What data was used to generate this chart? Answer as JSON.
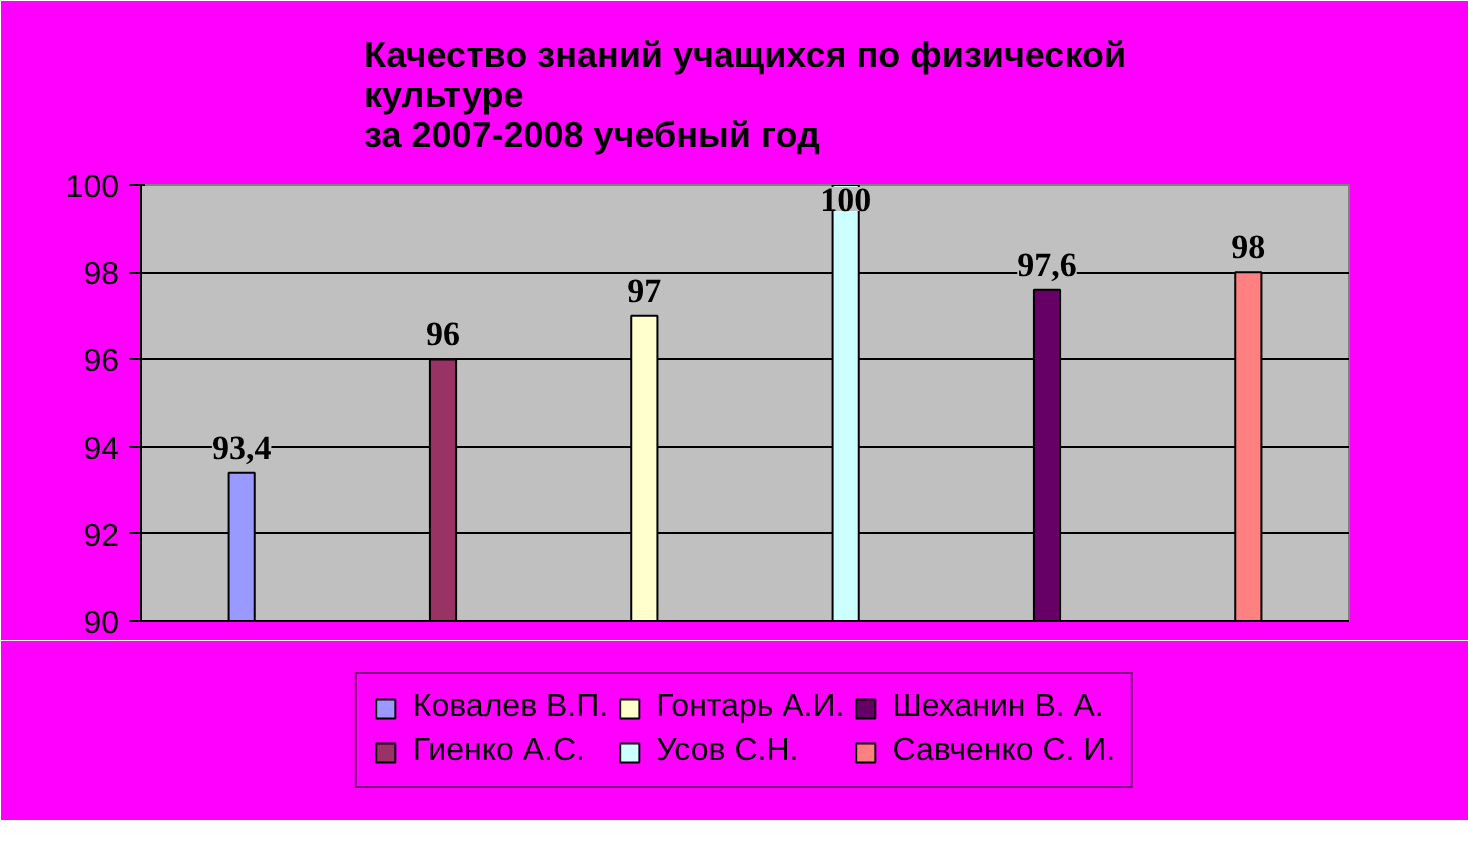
{
  "chart_data": {
    "type": "bar",
    "title": "Качество знаний учащихся по физической\nкультуре\nза 2007-2008 учебный год",
    "categories": [
      null
    ],
    "series": [
      {
        "name": "Ковалев В.П.",
        "color": "#9999ff",
        "values": [
          93.4
        ]
      },
      {
        "name": "Гиенко А.С.",
        "color": "#993366",
        "values": [
          96
        ]
      },
      {
        "name": "Гонтарь А.И.",
        "color": "#ffffcc",
        "values": [
          97
        ]
      },
      {
        "name": "Усов С.Н.",
        "color": "#ccffff",
        "values": [
          100
        ]
      },
      {
        "name": "Шеханин В. А.",
        "color": "#660066",
        "values": [
          97.6
        ]
      },
      {
        "name": "Савченко С. И.",
        "color": "#ff8080",
        "values": [
          98
        ]
      }
    ],
    "value_labels": [
      "93,4",
      "96",
      "97",
      "100",
      "97,6",
      "98"
    ],
    "ylim": [
      90,
      100
    ],
    "yticks": [
      90,
      92,
      94,
      96,
      98,
      100
    ],
    "grid": "y",
    "legend": "bottom",
    "tick_labels": "y"
  }
}
